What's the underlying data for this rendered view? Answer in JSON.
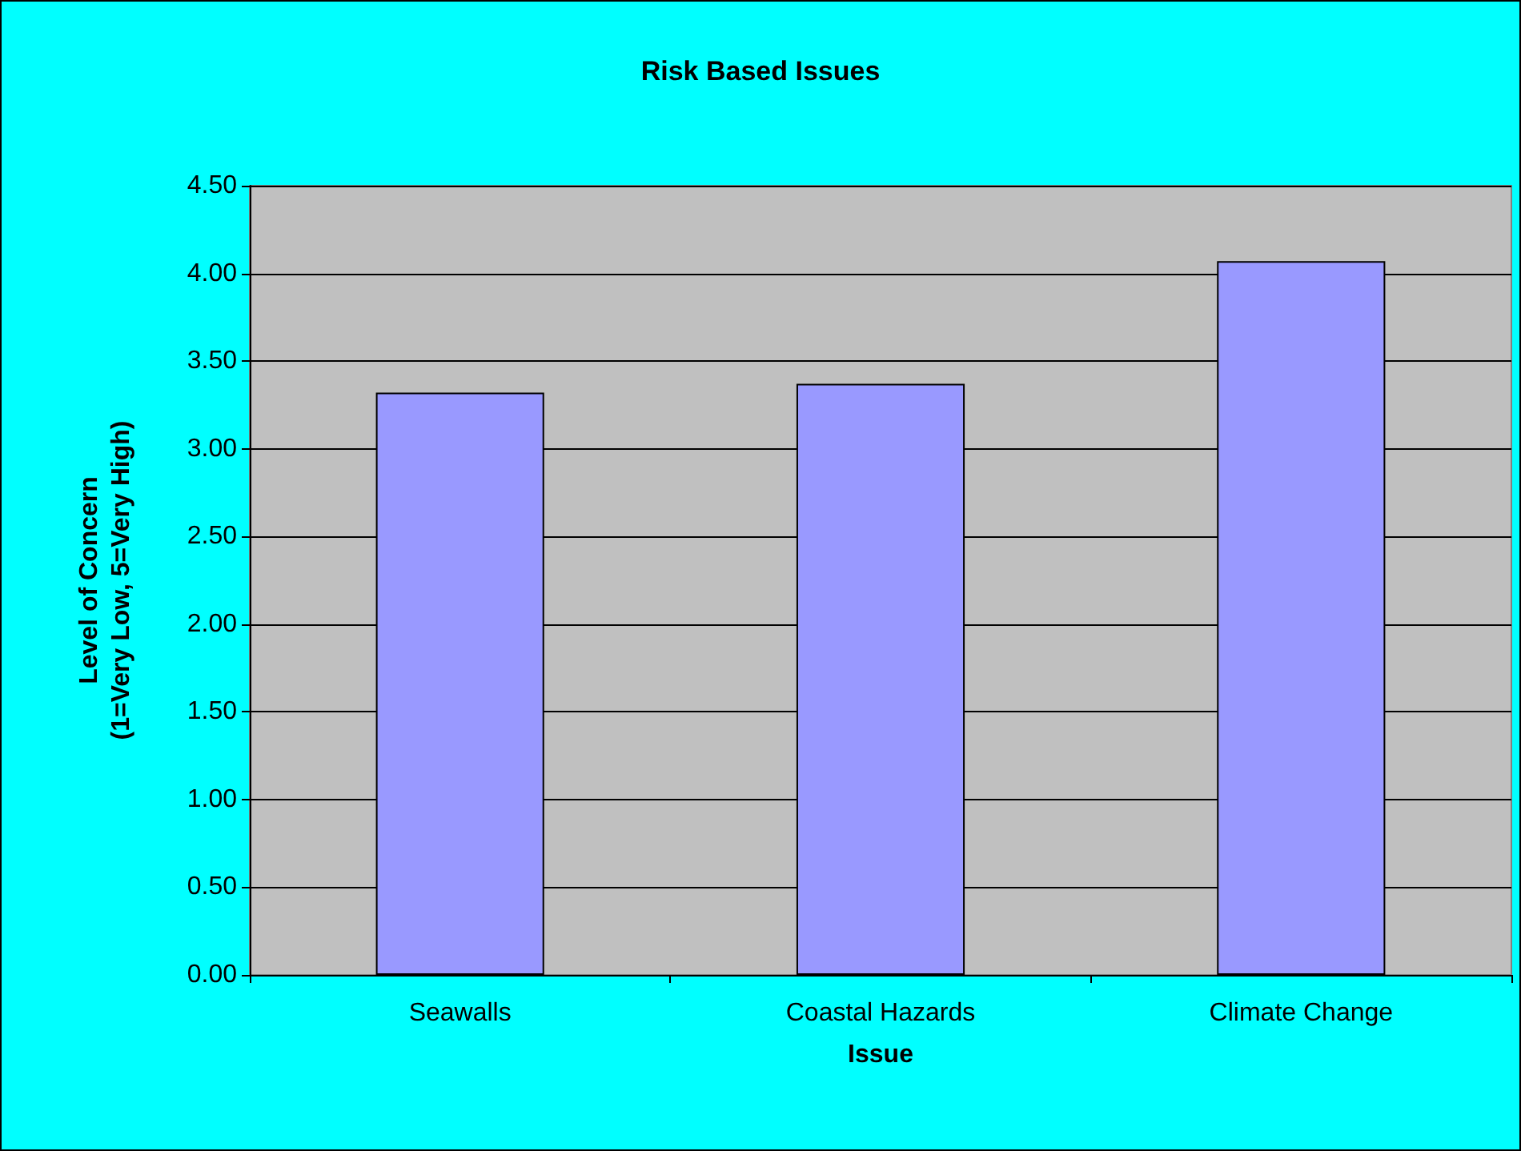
{
  "chart_data": {
    "type": "bar",
    "title": "Risk Based Issues",
    "xlabel": "Issue",
    "ylabel": "Level of Concern\n(1=Very Low, 5=Very High)",
    "categories": [
      "Seawalls",
      "Coastal Hazards",
      "Climate Change"
    ],
    "values": [
      3.32,
      3.37,
      4.07
    ],
    "color": "#9999ff",
    "ylim": [
      0,
      4.5
    ],
    "yticks": [
      {
        "value": 0,
        "label": "0.00"
      },
      {
        "value": 0.5,
        "label": "0.50"
      },
      {
        "value": 1,
        "label": "1.00"
      },
      {
        "value": 1.5,
        "label": "1.50"
      },
      {
        "value": 2,
        "label": "2.00"
      },
      {
        "value": 2.5,
        "label": "2.50"
      },
      {
        "value": 3,
        "label": "3.00"
      },
      {
        "value": 3.5,
        "label": "3.50"
      },
      {
        "value": 4,
        "label": "4.00"
      },
      {
        "value": 4.5,
        "label": "4.50"
      }
    ],
    "grid": "y"
  }
}
